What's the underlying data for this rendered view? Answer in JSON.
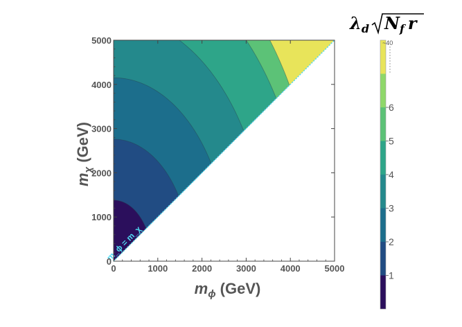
{
  "chart_data": {
    "type": "contour",
    "title": "",
    "xlabel": "m_ϕ",
    "xlabel_unit": "(GeV)",
    "ylabel": "m_χ",
    "ylabel_unit": "(GeV)",
    "xlim": [
      0,
      5000
    ],
    "ylim": [
      0,
      5000
    ],
    "xticks": [
      "0",
      "1000",
      "2000",
      "3000",
      "4000",
      "5000"
    ],
    "yticks": [
      "0",
      "1000",
      "2000",
      "3000",
      "4000",
      "5000"
    ],
    "excluded_region": "m_χ > m_ϕ",
    "annotation": "m_ϕ = m_χ",
    "colorbar": {
      "title": "λ_d √(N_f r)",
      "title_base": "λ",
      "title_sub": "d",
      "title_radicand_N": "N",
      "title_radicand_sub": "f",
      "title_radicand_r": "r",
      "levels": [
        0,
        1,
        2,
        3,
        4,
        5,
        6,
        7
      ],
      "tick_labels": [
        "1",
        "2",
        "3",
        "4",
        "5",
        "6"
      ],
      "top_label": "~40",
      "colors": [
        "#2b0f5c",
        "#214c83",
        "#1c6e8c",
        "#24898c",
        "#2ea589",
        "#5cc277",
        "#8fd86a",
        "#e8e45a"
      ]
    },
    "contour_extents": [
      {
        "level": 1,
        "intercept_my": 1380,
        "max_mphi": 870
      },
      {
        "level": 2,
        "intercept_my": 2760,
        "max_mphi": 1740
      },
      {
        "level": 3,
        "intercept_my": 4150,
        "max_mphi": 2610
      },
      {
        "level": 4,
        "intercept_my": 5530,
        "max_mphi": 3480
      },
      {
        "level": 5,
        "intercept_my": 6910,
        "max_mphi": 4350
      },
      {
        "level": 6,
        "intercept_my": 7700,
        "max_mphi": 4650
      }
    ]
  }
}
